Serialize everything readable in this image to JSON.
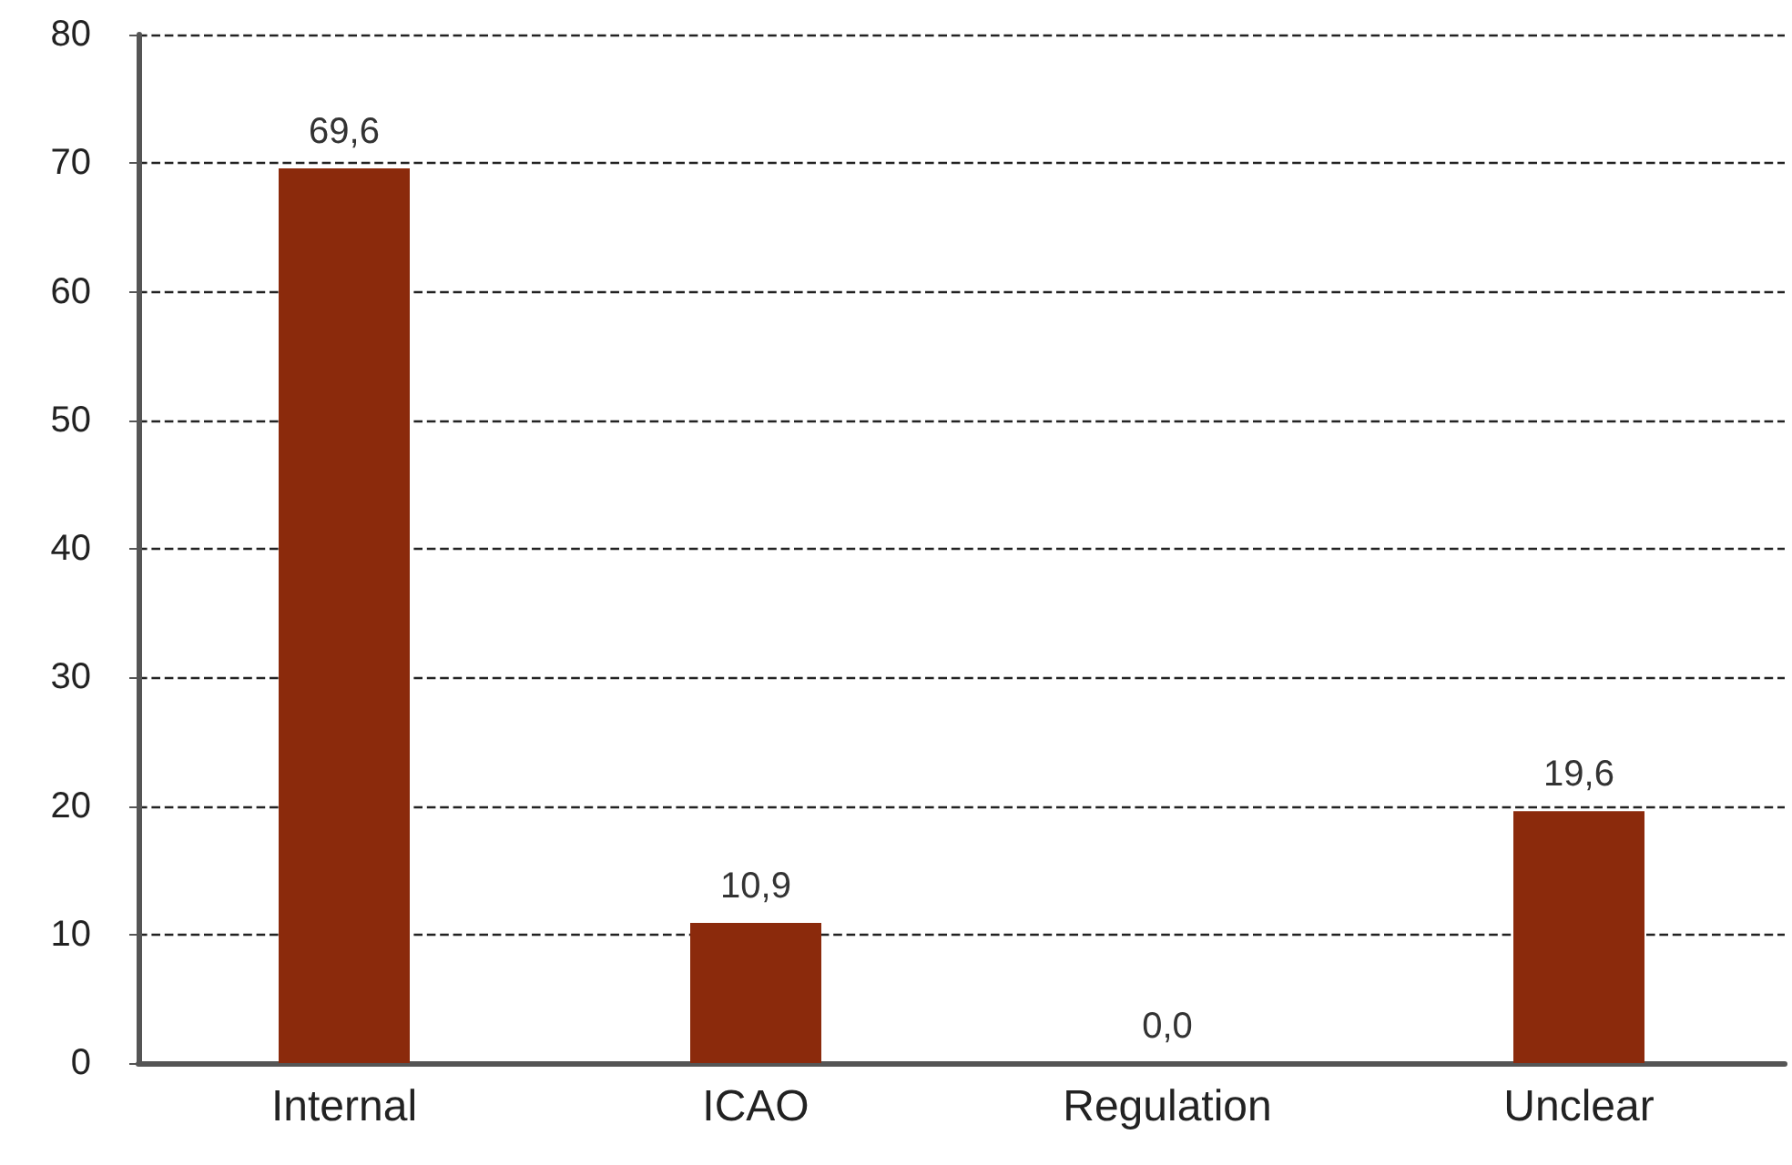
{
  "chart_data": {
    "type": "bar",
    "categories": [
      "Internal",
      "ICAO",
      "Regulation",
      "Unclear"
    ],
    "values": [
      69.6,
      10.9,
      0.0,
      19.6
    ],
    "value_labels": [
      "69,6",
      "10,9",
      "0,0",
      "19,6"
    ],
    "color": "#8b2a0c",
    "ylim": [
      0,
      80
    ],
    "yticks": [
      0,
      10,
      20,
      30,
      40,
      50,
      60,
      70,
      80
    ],
    "grid": "y"
  }
}
